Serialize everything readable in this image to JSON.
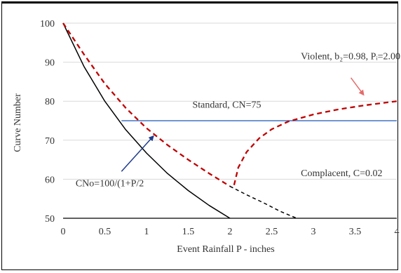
{
  "chart_data": {
    "type": "line",
    "title": "",
    "xlabel": "Event Rainfall P - inches",
    "ylabel": "Curve Number",
    "xlim": [
      0,
      4
    ],
    "ylim": [
      50,
      100
    ],
    "xticks": [
      0,
      0.5,
      1,
      1.5,
      2,
      2.5,
      3,
      3.5,
      4
    ],
    "xtick_labels": [
      "0",
      "0.5",
      "1",
      "1.5",
      "2",
      "2.5",
      "3",
      "3.5",
      "4"
    ],
    "yticks": [
      50,
      60,
      70,
      80,
      90,
      100
    ],
    "ytick_labels": [
      "50",
      "60",
      "70",
      "80",
      "90",
      "100"
    ],
    "grid": "horizontal",
    "legend": "none",
    "series": [
      {
        "role": "cno_curve",
        "color": "#000000",
        "style": "solid",
        "x": [
          0,
          0.25,
          0.5,
          0.75,
          1.0,
          1.25,
          1.5,
          1.75,
          2.0
        ],
        "y": [
          100,
          88.9,
          80.0,
          72.7,
          66.7,
          61.5,
          57.1,
          53.3,
          50.0
        ]
      },
      {
        "role": "complacent_continuation",
        "color": "#000000",
        "style": "dashed",
        "x": [
          2.0,
          2.2,
          2.4,
          2.6,
          2.8
        ],
        "y": [
          58.2,
          56.0,
          54.0,
          51.8,
          50.0
        ]
      },
      {
        "role": "standard",
        "color": "#4472c4",
        "style": "solid",
        "x": [
          0.7,
          4.0
        ],
        "y": [
          75,
          75
        ]
      },
      {
        "role": "violent_falling",
        "color": "#c00000",
        "style": "dashed",
        "x": [
          0,
          0.25,
          0.5,
          0.75,
          1.0,
          1.25,
          1.5,
          1.75,
          2.0
        ],
        "y": [
          100,
          92,
          84.5,
          78.3,
          73.1,
          68.8,
          65.0,
          61.5,
          58.2
        ]
      },
      {
        "role": "violent_rising",
        "color": "#c00000",
        "style": "dashed",
        "x": [
          2.05,
          2.1,
          2.2,
          2.35,
          2.5,
          2.7,
          3.0,
          3.3,
          3.6,
          4.0
        ],
        "y": [
          58.5,
          63.0,
          67.0,
          70.5,
          72.8,
          74.8,
          76.6,
          77.9,
          78.9,
          80.0
        ]
      }
    ],
    "annotations": [
      {
        "name": "violent",
        "text": "Violent, b₂=0.98, Pᵢ=2.00",
        "x": 2.85,
        "y": 90.7
      },
      {
        "name": "standard",
        "text": "Standard, CN=75",
        "x": 1.55,
        "y": 78.3
      },
      {
        "name": "cno",
        "text": "CNo=100/(1+P/2",
        "x": 0.15,
        "y": 58.2
      },
      {
        "name": "complacent",
        "text": "Complacent, C=0.02",
        "x": 2.85,
        "y": 60.8
      }
    ],
    "arrows": [
      {
        "name": "cno",
        "color": "#1f3b8c",
        "from": [
          0.7,
          62.0
        ],
        "to": [
          1.08,
          71.0
        ]
      },
      {
        "name": "violent",
        "color": "#e36c6c",
        "from": [
          3.45,
          86.0
        ],
        "to": [
          3.6,
          81.7
        ]
      }
    ]
  }
}
